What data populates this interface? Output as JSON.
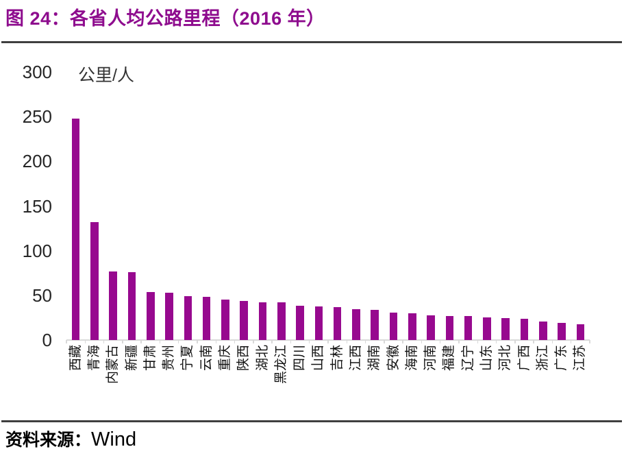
{
  "title": "图 24：各省人均公路里程（2016 年）",
  "source": {
    "prefix": "资料来源：",
    "name": "Wind"
  },
  "colors": {
    "bar": "#97098F",
    "title": "#8E0C8E",
    "rule": "#3F3F3F",
    "axis_line": "#D9D9D9",
    "tick_text": "#262626"
  },
  "chart_data": {
    "type": "bar",
    "title": "各省人均公路里程（2016 年）",
    "ylabel": "公里/人",
    "xlabel": "",
    "ylim": [
      0,
      300
    ],
    "yticks": [
      0,
      50,
      100,
      150,
      200,
      250,
      300
    ],
    "grid": false,
    "legend_position": "none",
    "categories": [
      "西藏",
      "青海",
      "内蒙古",
      "新疆",
      "甘肃",
      "贵州",
      "宁夏",
      "云南",
      "重庆",
      "陕西",
      "湖北",
      "黑龙江",
      "四川",
      "山西",
      "吉林",
      "江西",
      "湖南",
      "安徽",
      "海南",
      "河南",
      "福建",
      "辽宁",
      "山东",
      "河北",
      "广西",
      "浙江",
      "广东",
      "江苏"
    ],
    "values": [
      248,
      132,
      77,
      76,
      54,
      53,
      49,
      48.5,
      45,
      44,
      42.5,
      42,
      38,
      37.5,
      36.5,
      34.5,
      34,
      31,
      30,
      27.5,
      27,
      26.5,
      25.5,
      24.5,
      23.5,
      20.5,
      19.5,
      18
    ],
    "source": "Wind"
  }
}
